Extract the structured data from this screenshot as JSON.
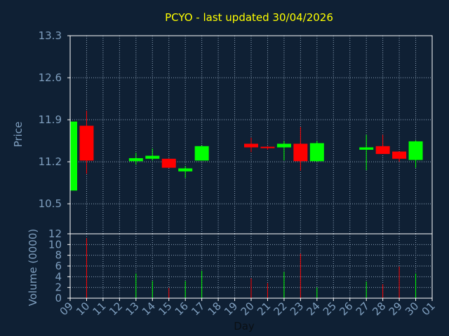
{
  "chart_data": {
    "type": "candlestick",
    "title": "PCYO - last updated 30/04/2026",
    "xlabel": "Day",
    "price_panel": {
      "ylabel": "Price",
      "ylim": [
        10.0,
        13.3
      ],
      "yticks": [
        "13.3",
        "12.6",
        "11.9",
        "11.2",
        "10.5"
      ],
      "ytick_values": [
        13.3,
        12.6,
        11.9,
        11.2,
        10.5
      ]
    },
    "volume_panel": {
      "ylabel": "Volume (0000)",
      "ylim": [
        0,
        12
      ],
      "yticks": [
        "12",
        "10",
        "8",
        "6",
        "4",
        "2",
        "0"
      ],
      "ytick_values": [
        12,
        10,
        8,
        6,
        4,
        2,
        0
      ]
    },
    "x_ticks": [
      "09",
      "10",
      "11",
      "12",
      "13",
      "14",
      "15",
      "16",
      "17",
      "18",
      "19",
      "20",
      "21",
      "22",
      "23",
      "24",
      "25",
      "26",
      "27",
      "28",
      "29",
      "30",
      "01"
    ],
    "x_range": [
      9,
      31
    ],
    "up_color": "#00ff00",
    "down_color": "#ff0000",
    "candles": [
      {
        "day": 9,
        "open": 10.72,
        "close": 11.87,
        "high": 11.87,
        "low": 10.72,
        "volume": 0
      },
      {
        "day": 10,
        "open": 11.8,
        "close": 11.22,
        "high": 12.05,
        "low": 11.0,
        "volume": 11.2
      },
      {
        "day": 13,
        "open": 11.21,
        "close": 11.26,
        "high": 11.35,
        "low": 11.15,
        "volume": 4.6
      },
      {
        "day": 14,
        "open": 11.25,
        "close": 11.3,
        "high": 11.42,
        "low": 11.22,
        "volume": 3.2
      },
      {
        "day": 15,
        "open": 11.25,
        "close": 11.1,
        "high": 11.25,
        "low": 11.1,
        "volume": 1.9
      },
      {
        "day": 16,
        "open": 11.04,
        "close": 11.09,
        "high": 11.13,
        "low": 10.93,
        "volume": 3.2
      },
      {
        "day": 17,
        "open": 11.22,
        "close": 11.46,
        "high": 11.47,
        "low": 11.22,
        "volume": 5.1
      },
      {
        "day": 20,
        "open": 11.5,
        "close": 11.44,
        "high": 11.6,
        "low": 11.36,
        "volume": 3.7
      },
      {
        "day": 21,
        "open": 11.45,
        "close": 11.43,
        "high": 11.46,
        "low": 11.4,
        "volume": 2.8
      },
      {
        "day": 22,
        "open": 11.44,
        "close": 11.5,
        "high": 11.55,
        "low": 11.22,
        "volume": 4.9
      },
      {
        "day": 23,
        "open": 11.5,
        "close": 11.21,
        "high": 11.78,
        "low": 11.05,
        "volume": 8.3
      },
      {
        "day": 24,
        "open": 11.21,
        "close": 11.51,
        "high": 11.55,
        "low": 11.2,
        "volume": 2.0
      },
      {
        "day": 27,
        "open": 11.4,
        "close": 11.44,
        "high": 11.65,
        "low": 11.06,
        "volume": 3.1
      },
      {
        "day": 28,
        "open": 11.46,
        "close": 11.33,
        "high": 11.65,
        "low": 11.33,
        "volume": 2.6
      },
      {
        "day": 29,
        "open": 11.37,
        "close": 11.25,
        "high": 11.37,
        "low": 11.2,
        "volume": 5.9
      },
      {
        "day": 30,
        "open": 11.23,
        "close": 11.54,
        "high": 11.56,
        "low": 11.1,
        "volume": 4.6
      }
    ]
  }
}
